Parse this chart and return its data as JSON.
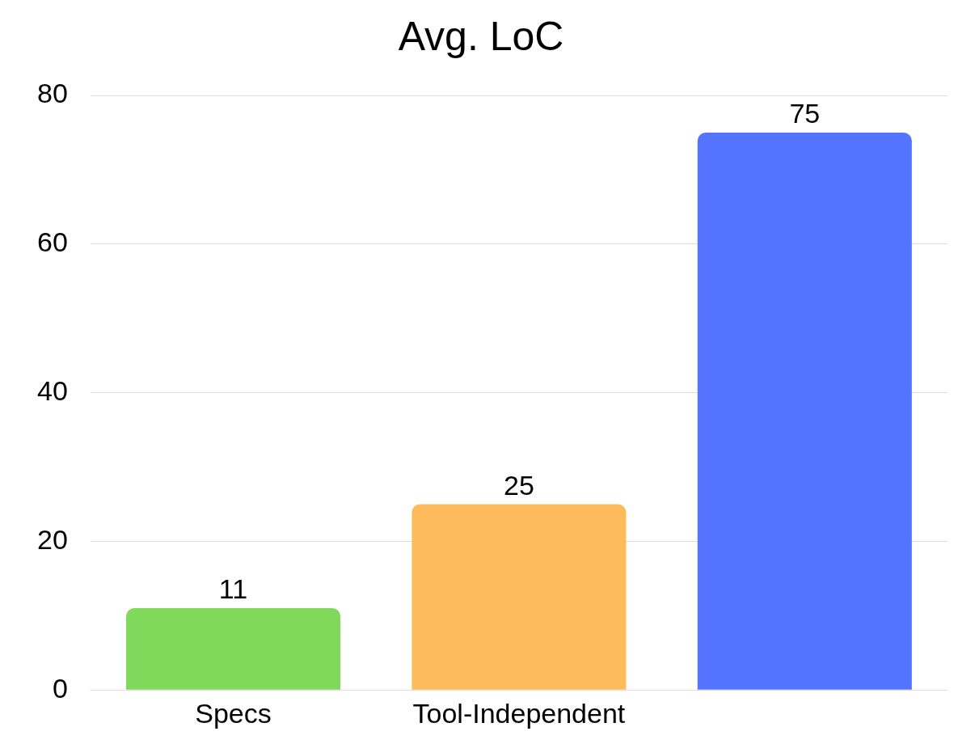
{
  "chart_data": {
    "type": "bar",
    "title": "Avg. LoC",
    "categories": [
      "Specs",
      "Tool-Independent",
      null
    ],
    "values": [
      11,
      25,
      75
    ],
    "colors": [
      "#80d95a",
      "#fdbb5b",
      "#5474ff"
    ],
    "ylim": [
      0,
      80
    ],
    "yticks": [
      0,
      20,
      40,
      60,
      80
    ],
    "grid": "y",
    "legend": false,
    "data_labels": true
  }
}
